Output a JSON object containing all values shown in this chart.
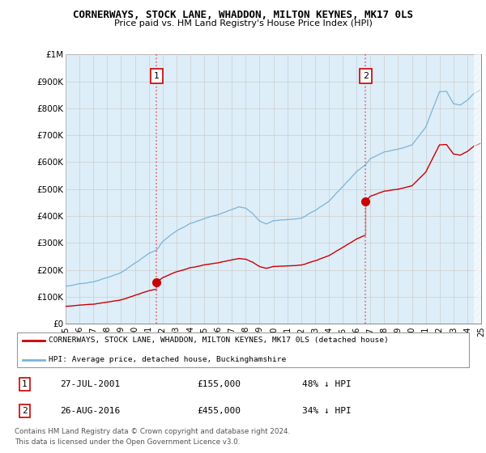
{
  "title": "CORNERWAYS, STOCK LANE, WHADDON, MILTON KEYNES, MK17 0LS",
  "subtitle": "Price paid vs. HM Land Registry's House Price Index (HPI)",
  "ylim": [
    0,
    1000000
  ],
  "yticks": [
    0,
    100000,
    200000,
    300000,
    400000,
    500000,
    600000,
    700000,
    800000,
    900000,
    1000000
  ],
  "ytick_labels": [
    "£0",
    "£100K",
    "£200K",
    "£300K",
    "£400K",
    "£500K",
    "£600K",
    "£700K",
    "£800K",
    "£900K",
    "£1M"
  ],
  "hpi_color": "#7ab4d8",
  "hpi_fill_color": "#ddeef8",
  "price_color": "#cc0000",
  "vline_color": "#dd4444",
  "marker1_year": 2001.57,
  "marker2_year": 2016.65,
  "sale1_price": 155000,
  "sale2_price": 455000,
  "legend_label1": "CORNERWAYS, STOCK LANE, WHADDON, MILTON KEYNES, MK17 0LS (detached house)",
  "legend_label2": "HPI: Average price, detached house, Buckinghamshire",
  "table_row1": [
    "1",
    "27-JUL-2001",
    "£155,000",
    "48% ↓ HPI"
  ],
  "table_row2": [
    "2",
    "26-AUG-2016",
    "£455,000",
    "34% ↓ HPI"
  ],
  "footer1": "Contains HM Land Registry data © Crown copyright and database right 2024.",
  "footer2": "This data is licensed under the Open Government Licence v3.0.",
  "xmin": 1995.25,
  "xmax": 2025.0,
  "future_cutoff": 2024.5
}
